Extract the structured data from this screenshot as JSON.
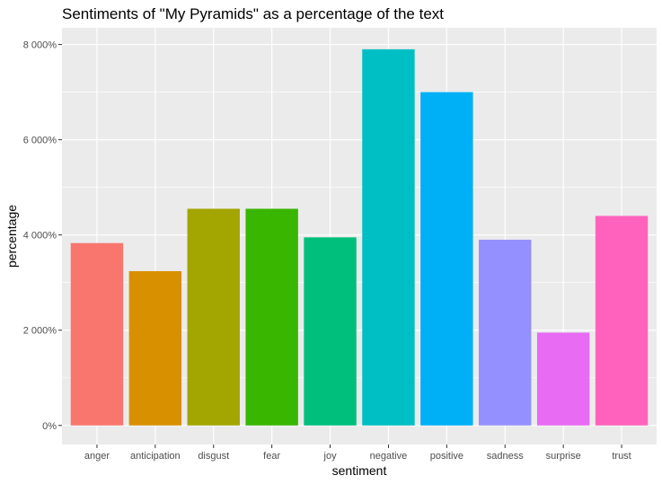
{
  "chart_data": {
    "type": "bar",
    "title": "Sentiments of \"My Pyramids\" as a percentage of the text",
    "xlabel": "sentiment",
    "ylabel": "percentage",
    "categories": [
      "anger",
      "anticipation",
      "disgust",
      "fear",
      "joy",
      "negative",
      "positive",
      "sadness",
      "surprise",
      "trust"
    ],
    "values": [
      3830,
      3240,
      4550,
      4550,
      3950,
      7900,
      7000,
      3900,
      1950,
      4400
    ],
    "colors": [
      "#F8766D",
      "#D89000",
      "#A3A500",
      "#39B600",
      "#00BF7D",
      "#00BFC4",
      "#00B0F6",
      "#9590FF",
      "#E76BF3",
      "#FF62BC"
    ],
    "ylim": [
      0,
      8000
    ],
    "yticks": [
      0,
      2000,
      4000,
      6000,
      8000
    ],
    "ytick_labels": [
      "0%",
      "2 000%",
      "4 000%",
      "6 000%",
      "8 000%"
    ],
    "grid": true,
    "panel_background": "#EBEBEB",
    "legend": "none"
  }
}
